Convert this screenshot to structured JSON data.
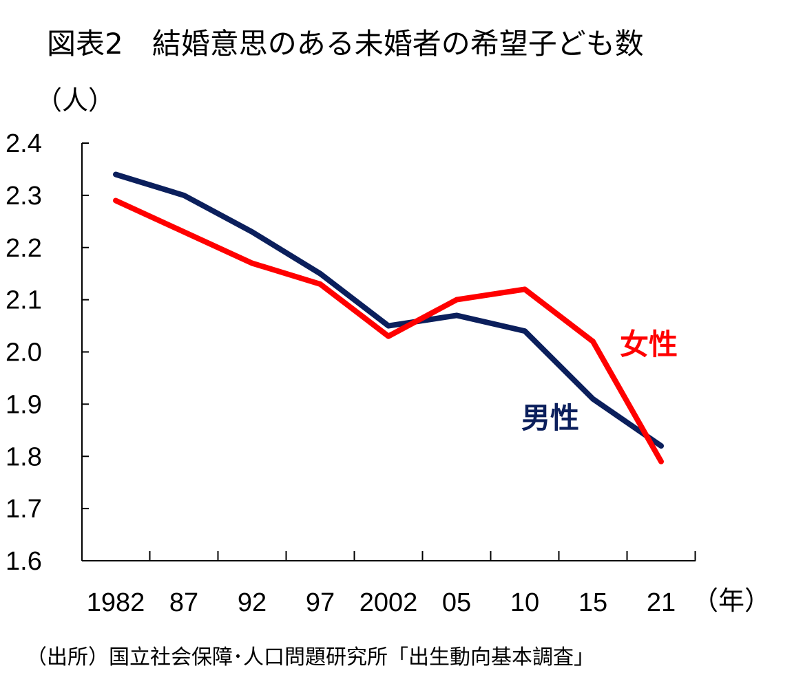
{
  "title": "図表2　結婚意思のある未婚者の希望子ども数",
  "source": "（出所）国立社会保障･人口問題研究所「出生動向基本調査」",
  "chart_data": {
    "type": "line",
    "ylabel": "（人）",
    "xlabel": "（年）",
    "ylim": [
      1.6,
      2.4
    ],
    "yticks": [
      "2.4",
      "2.3",
      "2.2",
      "2.1",
      "2.0",
      "1.9",
      "1.8",
      "1.7",
      "1.6"
    ],
    "categories": [
      "1982",
      "87",
      "92",
      "97",
      "2002",
      "05",
      "10",
      "15",
      "21"
    ],
    "series": [
      {
        "name": "男性",
        "color": "#0b1f5c",
        "values": [
          2.34,
          2.3,
          2.23,
          2.15,
          2.05,
          2.07,
          2.04,
          1.91,
          1.82
        ]
      },
      {
        "name": "女性",
        "color": "#ff0000",
        "values": [
          2.29,
          2.23,
          2.17,
          2.13,
          2.03,
          2.1,
          2.12,
          2.02,
          1.79
        ]
      }
    ]
  }
}
